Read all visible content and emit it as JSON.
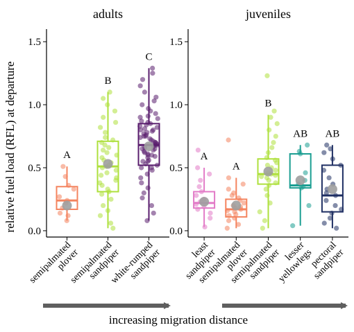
{
  "ylabel": "relative fuel load (RFL) at departure",
  "xlabel": "increasing migration distance",
  "colors": {
    "semipalmated_plover": "#f4845f",
    "semipalmated_sandpiper": "#aee03c",
    "white_rumped_sandpiper": "#5a1e6e",
    "least_sandpiper": "#e27ac7",
    "lesser_yellowlegs": "#1b9e92",
    "pectoral_sandpiper": "#1f2f63",
    "mean_marker": "#9e9e9e",
    "arrow": "#5f5f5f"
  },
  "chart_data": [
    {
      "type": "box",
      "title": "adults",
      "ylim": [
        -0.05,
        1.6
      ],
      "yticks": [
        "0.0",
        "0.5",
        "1.0",
        "1.5"
      ],
      "groups": [
        {
          "label": [
            "semipalmated",
            "plover"
          ],
          "color_key": "semipalmated_plover",
          "letter": "A",
          "stats": {
            "min": 0.08,
            "q1": 0.17,
            "median": 0.24,
            "q3": 0.35,
            "max": 0.51,
            "mean": 0.2
          },
          "points": [
            0.08,
            0.12,
            0.14,
            0.18,
            0.22,
            0.24,
            0.27,
            0.33,
            0.36,
            0.43,
            0.51
          ]
        },
        {
          "label": [
            "semipalmated",
            "sandpiper"
          ],
          "color_key": "semipalmated_sandpiper",
          "letter": "B",
          "stats": {
            "min": 0.02,
            "q1": 0.31,
            "median": 0.51,
            "q3": 0.71,
            "max": 1.1,
            "mean": 0.53
          },
          "points": [
            0.02,
            0.06,
            0.12,
            0.16,
            0.2,
            0.25,
            0.29,
            0.31,
            0.33,
            0.36,
            0.38,
            0.4,
            0.42,
            0.44,
            0.46,
            0.48,
            0.5,
            0.51,
            0.52,
            0.54,
            0.56,
            0.58,
            0.6,
            0.62,
            0.64,
            0.66,
            0.68,
            0.7,
            0.72,
            0.74,
            0.78,
            0.82,
            0.86,
            0.9,
            0.95,
            1.0,
            1.05,
            1.1
          ]
        },
        {
          "label": [
            "white-rumped",
            "sandpiper"
          ],
          "color_key": "white_rumped_sandpiper",
          "letter": "C",
          "stats": {
            "min": 0.08,
            "q1": 0.52,
            "median": 0.68,
            "q3": 0.85,
            "max": 1.29,
            "mean": 0.67
          },
          "points": [
            0.08,
            0.14,
            0.2,
            0.26,
            0.3,
            0.34,
            0.38,
            0.42,
            0.45,
            0.48,
            0.5,
            0.52,
            0.53,
            0.55,
            0.56,
            0.58,
            0.59,
            0.6,
            0.61,
            0.62,
            0.63,
            0.64,
            0.65,
            0.66,
            0.67,
            0.68,
            0.68,
            0.69,
            0.7,
            0.71,
            0.72,
            0.73,
            0.74,
            0.75,
            0.76,
            0.77,
            0.78,
            0.79,
            0.8,
            0.81,
            0.82,
            0.83,
            0.84,
            0.85,
            0.86,
            0.87,
            0.89,
            0.91,
            0.93,
            0.95,
            0.97,
            1.0,
            1.03,
            1.06,
            1.1,
            1.15,
            1.2,
            1.25,
            1.29,
            0.6,
            0.7,
            0.75,
            0.65,
            0.55,
            0.8,
            0.5,
            0.9
          ]
        }
      ]
    },
    {
      "type": "box",
      "title": "juveniles",
      "ylim": [
        -0.05,
        1.6
      ],
      "yticks": [
        "0.0",
        "0.5",
        "1.0",
        "1.5"
      ],
      "groups": [
        {
          "label": [
            "least",
            "sandpiper"
          ],
          "color_key": "least_sandpiper",
          "letter": "A",
          "stats": {
            "min": 0.03,
            "q1": 0.18,
            "median": 0.22,
            "q3": 0.31,
            "max": 0.5,
            "mean": 0.23
          },
          "points": [
            0.03,
            0.1,
            0.14,
            0.17,
            0.19,
            0.21,
            0.23,
            0.25,
            0.28,
            0.31,
            0.35,
            0.4,
            0.45,
            0.5,
            0.64
          ]
        },
        {
          "label": [
            "semipalmated",
            "plover"
          ],
          "color_key": "semipalmated_plover",
          "letter": "A",
          "stats": {
            "min": 0.02,
            "q1": 0.11,
            "median": 0.17,
            "q3": 0.25,
            "max": 0.42,
            "mean": 0.2
          },
          "points": [
            0.02,
            0.05,
            0.08,
            0.1,
            0.12,
            0.13,
            0.15,
            0.16,
            0.17,
            0.18,
            0.19,
            0.2,
            0.22,
            0.24,
            0.26,
            0.28,
            0.3,
            0.33,
            0.37,
            0.42,
            0.72
          ]
        },
        {
          "label": [
            "semipalmated",
            "sandpiper"
          ],
          "color_key": "semipalmated_sandpiper",
          "letter": "B",
          "stats": {
            "min": 0.02,
            "q1": 0.37,
            "median": 0.45,
            "q3": 0.57,
            "max": 0.92,
            "mean": 0.47
          },
          "points": [
            0.02,
            0.08,
            0.15,
            0.22,
            0.28,
            0.33,
            0.36,
            0.38,
            0.4,
            0.42,
            0.43,
            0.44,
            0.45,
            0.46,
            0.48,
            0.5,
            0.52,
            0.54,
            0.56,
            0.58,
            0.62,
            0.66,
            0.7,
            0.75,
            0.8,
            0.85,
            0.9,
            0.95,
            1.23
          ]
        },
        {
          "label": [
            "lesser",
            "yellowlegs"
          ],
          "color_key": "lesser_yellowlegs",
          "letter": "AB",
          "stats": {
            "min": 0.04,
            "q1": 0.34,
            "median": 0.36,
            "q3": 0.61,
            "max": 0.68,
            "mean": 0.4
          },
          "points": [
            0.04,
            0.2,
            0.34,
            0.35,
            0.37,
            0.4,
            0.46,
            0.61,
            0.63,
            0.68
          ]
        },
        {
          "label": [
            "pectoral",
            "sandpiper"
          ],
          "color_key": "pectoral_sandpiper",
          "letter": "AB",
          "stats": {
            "min": 0.02,
            "q1": 0.15,
            "median": 0.28,
            "q3": 0.52,
            "max": 0.68,
            "mean": 0.33
          },
          "points": [
            0.02,
            0.06,
            0.1,
            0.14,
            0.17,
            0.2,
            0.24,
            0.28,
            0.3,
            0.33,
            0.37,
            0.42,
            0.48,
            0.52,
            0.57,
            0.62,
            0.65,
            0.68
          ]
        }
      ]
    }
  ]
}
